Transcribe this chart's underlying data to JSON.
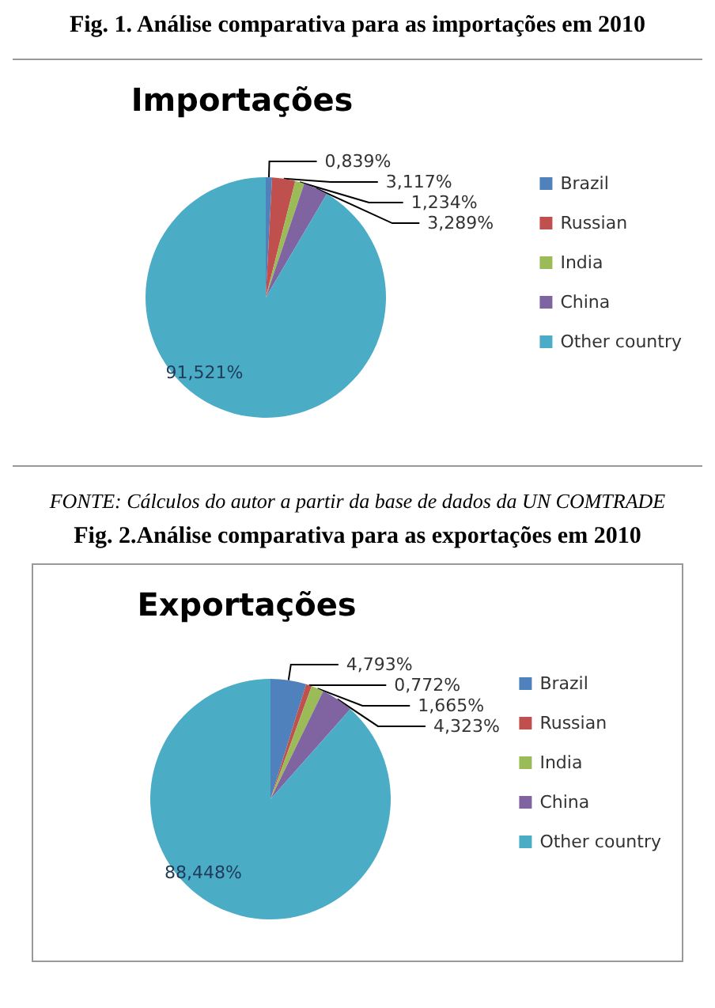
{
  "chart_data": [
    {
      "type": "pie",
      "title": "Importações",
      "annotations": [
        "Fig. 1. Análise comparativa para as importações em 2010",
        "FONTE: Cálculos do autor a partir da base de dados da UN COMTRADE"
      ],
      "categories": [
        "Brazil",
        "Russian",
        "India",
        "China",
        "Other country"
      ],
      "values": [
        0.839,
        3.117,
        1.234,
        3.289,
        91.521
      ],
      "value_labels": [
        "0,839%",
        "3,117%",
        "1,234%",
        "3,289%",
        "91,521%"
      ],
      "colors": [
        "#4f81bd",
        "#c0504d",
        "#9bbb59",
        "#8064a2",
        "#4bacc6"
      ],
      "legend": "right"
    },
    {
      "type": "pie",
      "title": "Exportações",
      "annotations": [
        "Fig. 2.Análise comparativa para as exportações em 2010"
      ],
      "categories": [
        "Brazil",
        "Russian",
        "India",
        "China",
        "Other country"
      ],
      "values": [
        4.793,
        0.772,
        1.665,
        4.323,
        88.448
      ],
      "value_labels": [
        "4,793%",
        "0,772%",
        "1,665%",
        "4,323%",
        "88,448%"
      ],
      "colors": [
        "#4f81bd",
        "#c0504d",
        "#9bbb59",
        "#8064a2",
        "#4bacc6"
      ],
      "legend": "right"
    }
  ]
}
